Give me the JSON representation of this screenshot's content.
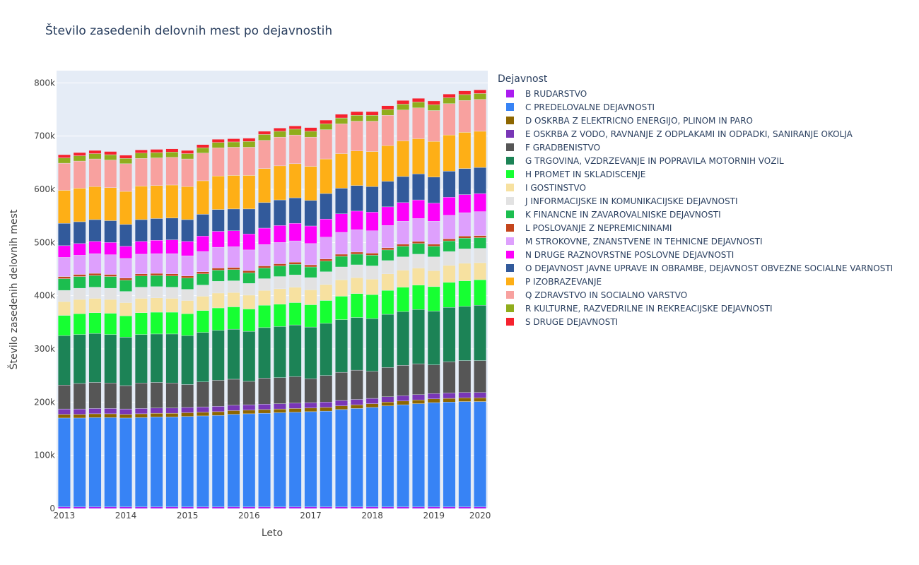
{
  "chart_data": {
    "type": "bar",
    "stacked": true,
    "title": "Število zasedenih delovnih mest po dejavnostih",
    "xlabel": "Leto",
    "ylabel": "Število zasedenih delovnih mest",
    "legend_title": "Dejavnost",
    "legend_placement": "right",
    "grid": true,
    "ylim": [
      0,
      823000
    ],
    "x_tick_labels": [
      "2013",
      "2014",
      "2015",
      "2016",
      "2017",
      "2018",
      "2019",
      "2020"
    ],
    "y_tick_labels": [
      "0",
      "100k",
      "200k",
      "300k",
      "400k",
      "500k",
      "600k",
      "700k",
      "800k"
    ],
    "y_ticks": [
      0,
      100000,
      200000,
      300000,
      400000,
      500000,
      600000,
      700000,
      800000
    ],
    "categories": [
      "2013Q1",
      "2013Q2",
      "2013Q3",
      "2013Q4",
      "2014Q1",
      "2014Q2",
      "2014Q3",
      "2014Q4",
      "2015Q1",
      "2015Q2",
      "2015Q3",
      "2015Q4",
      "2016Q1",
      "2016Q2",
      "2016Q3",
      "2016Q4",
      "2017Q1",
      "2017Q2",
      "2017Q3",
      "2017Q4",
      "2018Q1",
      "2018Q2",
      "2018Q3",
      "2018Q4",
      "2019Q1",
      "2019Q2",
      "2019Q3",
      "2019Q4"
    ],
    "series": [
      {
        "name": "B RUDARSTVO",
        "color": "#ab1cf0",
        "values": [
          3000,
          3000,
          3000,
          3000,
          3000,
          3000,
          3000,
          3000,
          3000,
          3000,
          3000,
          3000,
          3000,
          3000,
          3000,
          3000,
          3000,
          3000,
          3000,
          3000,
          3000,
          3000,
          3000,
          3000,
          3000,
          3000,
          3000,
          3000
        ]
      },
      {
        "name": "C PREDELOVALNE DEJAVNOSTI",
        "color": "#3783f5",
        "values": [
          167000,
          167000,
          168000,
          168000,
          167000,
          168000,
          169000,
          169000,
          170000,
          171000,
          172000,
          174000,
          175000,
          176000,
          177000,
          178000,
          179000,
          180000,
          183000,
          185000,
          187000,
          190000,
          192000,
          194000,
          196000,
          197000,
          198000,
          198000
        ]
      },
      {
        "name": "D OSKRBA Z ELEKTRICNO ENERGIJO, PLINOM IN PARO",
        "color": "#8d6600",
        "values": [
          7000,
          7000,
          7000,
          7000,
          7000,
          7000,
          7000,
          7000,
          7000,
          7000,
          7000,
          7000,
          7000,
          7000,
          7000,
          7000,
          7000,
          7000,
          7000,
          7000,
          7000,
          7000,
          7000,
          7000,
          7000,
          7000,
          7000,
          7000
        ]
      },
      {
        "name": "E OSKRBA Z VODO, RAVNANJE Z ODPLAKAMI IN ODPADKI, SANIRANJE OKOLJA",
        "color": "#7936b6",
        "values": [
          10000,
          10000,
          10000,
          10000,
          10000,
          10000,
          10000,
          10000,
          10000,
          10000,
          10000,
          10000,
          10000,
          10000,
          10000,
          10000,
          10000,
          10000,
          10000,
          10000,
          10000,
          10000,
          10000,
          10000,
          10000,
          10000,
          10000,
          10000
        ]
      },
      {
        "name": "F GRADBENISTVO",
        "color": "#565656",
        "values": [
          45000,
          48000,
          49000,
          48000,
          44000,
          48000,
          48000,
          47000,
          43000,
          47000,
          49000,
          49000,
          44000,
          49000,
          49000,
          50000,
          45000,
          50000,
          53000,
          55000,
          51000,
          55000,
          57000,
          58000,
          54000,
          59000,
          60000,
          60000
        ]
      },
      {
        "name": "G TRGOVINA, VZDRZEVANJE IN POPRAVILA MOTORNIH VOZIL",
        "color": "#1c8356",
        "values": [
          93000,
          92000,
          92000,
          91000,
          91000,
          91000,
          91000,
          92000,
          92000,
          93000,
          94000,
          94000,
          94000,
          95000,
          96000,
          97000,
          97000,
          98000,
          99000,
          99000,
          99000,
          100000,
          101000,
          102000,
          101000,
          102000,
          102000,
          104000
        ]
      },
      {
        "name": "H PROMET IN SKLADISCENJE",
        "color": "#16ff32",
        "values": [
          38000,
          39000,
          39000,
          40000,
          40000,
          41000,
          41000,
          41000,
          41000,
          41000,
          42000,
          42000,
          42000,
          42000,
          42000,
          42000,
          42000,
          43000,
          44000,
          45000,
          45000,
          45000,
          46000,
          46000,
          46000,
          47000,
          48000,
          48000
        ]
      },
      {
        "name": "I GOSTINSTVO",
        "color": "#f7e1a0",
        "values": [
          26000,
          27000,
          27000,
          26000,
          25000,
          27000,
          27000,
          26000,
          25000,
          27000,
          28000,
          27000,
          26000,
          28000,
          29000,
          29000,
          28000,
          30000,
          31000,
          30000,
          29000,
          31000,
          32000,
          32000,
          30000,
          32000,
          33000,
          32000
        ]
      },
      {
        "name": "J INFORMACIJSKE IN KOMUNIKACIJSKE DEJAVNOSTI",
        "color": "#e2e2e2",
        "values": [
          21000,
          21000,
          21000,
          21000,
          21000,
          21000,
          21000,
          21000,
          21000,
          21000,
          22000,
          22000,
          22000,
          22000,
          23000,
          23000,
          23000,
          24000,
          24000,
          24000,
          25000,
          25000,
          25000,
          26000,
          26000,
          26000,
          27000,
          27000
        ]
      },
      {
        "name": "K FINANCNE IN ZAVAROVALNISKE DEJAVNOSTI",
        "color": "#1cbe4f",
        "values": [
          22000,
          22000,
          22000,
          22000,
          21000,
          21000,
          21000,
          21000,
          21000,
          21000,
          21000,
          21000,
          20000,
          20000,
          20000,
          20000,
          20000,
          20000,
          20000,
          20000,
          20000,
          20000,
          20000,
          20000,
          20000,
          20000,
          20000,
          20000
        ]
      },
      {
        "name": "L POSLOVANJE Z NEPREMICNINAMI",
        "color": "#c4451c",
        "values": [
          4000,
          4000,
          4000,
          4000,
          4000,
          4000,
          4000,
          4000,
          4000,
          4000,
          4000,
          4000,
          4000,
          4000,
          4000,
          4000,
          4000,
          4000,
          4000,
          4000,
          4000,
          4000,
          4000,
          4000,
          4000,
          4000,
          4000,
          4000
        ]
      },
      {
        "name": "M STROKOVNE, ZNANSTVENE IN TEHNICNE DEJAVNOSTI",
        "color": "#dea0fd",
        "values": [
          36000,
          36000,
          37000,
          37000,
          37000,
          37000,
          37000,
          38000,
          38000,
          38000,
          39000,
          39000,
          39000,
          40000,
          40000,
          40000,
          40000,
          41000,
          41000,
          42000,
          42000,
          42000,
          43000,
          43000,
          43000,
          44000,
          44000,
          45000
        ]
      },
      {
        "name": "N DRUGE RAZNOVRSTNE POSLOVNE DEJAVNOSTI",
        "color": "#fe00fa",
        "values": [
          22000,
          22000,
          23000,
          23000,
          23000,
          24000,
          25000,
          26000,
          27000,
          29000,
          30000,
          30000,
          30000,
          31000,
          32000,
          33000,
          33000,
          34000,
          35000,
          35000,
          35000,
          35000,
          35000,
          35000,
          34000,
          34000,
          34000,
          34000
        ]
      },
      {
        "name": "O DEJAVNOST JAVNE UPRAVE IN OBRAMBE, DEJAVNOST OBVEZNE SOCIALNE VARNOSTI",
        "color": "#325a9b",
        "values": [
          42000,
          41000,
          41000,
          41000,
          41000,
          41000,
          41000,
          41000,
          41000,
          41000,
          41000,
          41000,
          47000,
          48000,
          48000,
          48000,
          48000,
          48000,
          48000,
          48000,
          48000,
          48000,
          49000,
          49000,
          49000,
          49000,
          49000,
          49000
        ]
      },
      {
        "name": "P IZOBRAZEVANJE",
        "color": "#feaf16",
        "values": [
          62000,
          63000,
          62000,
          62000,
          62000,
          63000,
          62000,
          62000,
          62000,
          63000,
          63000,
          63000,
          63000,
          64000,
          64000,
          64000,
          64000,
          65000,
          65000,
          65000,
          66000,
          67000,
          67000,
          66000,
          67000,
          68000,
          68000,
          68000
        ]
      },
      {
        "name": "Q ZDRAVSTVO IN SOCIALNO VARSTVO",
        "color": "#f8a19f",
        "values": [
          51000,
          51000,
          52000,
          52000,
          52000,
          52000,
          52000,
          52000,
          52000,
          52000,
          53000,
          53000,
          53000,
          53000,
          54000,
          54000,
          55000,
          55000,
          56000,
          56000,
          57000,
          57000,
          58000,
          58000,
          58000,
          59000,
          60000,
          60000
        ]
      },
      {
        "name": "R KULTURNE, RAZVEDRILNE IN REKREACIJSKE DEJAVNOSTI",
        "color": "#90ad1c",
        "values": [
          10000,
          10000,
          10000,
          10000,
          10000,
          10000,
          10000,
          10000,
          10000,
          10000,
          10000,
          10000,
          11000,
          11000,
          11000,
          11000,
          11000,
          11000,
          11000,
          11000,
          11000,
          11000,
          11000,
          11000,
          11000,
          11000,
          11000,
          11000
        ]
      },
      {
        "name": "S DRUGE DEJAVNOSTI",
        "color": "#f6222e",
        "values": [
          6000,
          6000,
          6000,
          6000,
          6000,
          6000,
          6000,
          6000,
          6000,
          6000,
          6000,
          6000,
          6000,
          6000,
          6000,
          6000,
          7000,
          7000,
          7000,
          7000,
          7000,
          7000,
          7000,
          7000,
          7000,
          7000,
          7000,
          7000
        ]
      }
    ]
  }
}
